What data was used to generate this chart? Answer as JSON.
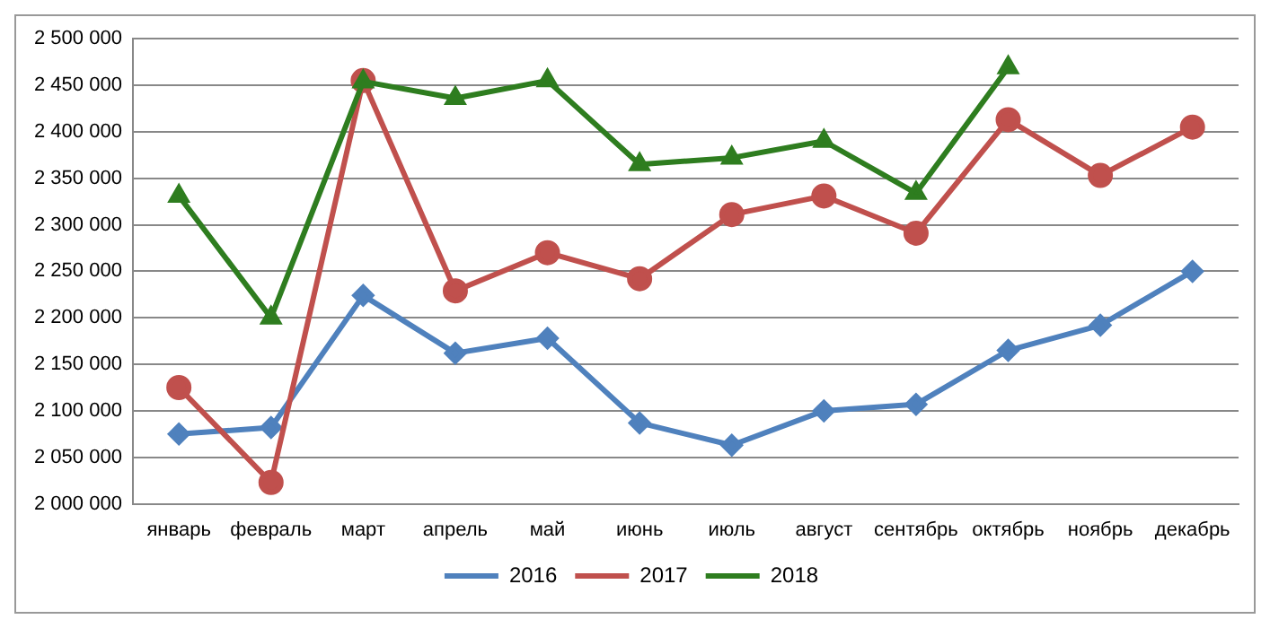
{
  "chart_data": {
    "type": "line",
    "categories": [
      "январь",
      "февраль",
      "март",
      "апрель",
      "май",
      "июнь",
      "июль",
      "август",
      "сентябрь",
      "октябрь",
      "ноябрь",
      "декабрь"
    ],
    "series": [
      {
        "name": "2016",
        "color": "#4f81bd",
        "marker": "diamond",
        "values": [
          2075000,
          2082000,
          2224000,
          2162000,
          2178000,
          2087000,
          2063000,
          2100000,
          2107000,
          2165000,
          2192000,
          2250000
        ]
      },
      {
        "name": "2017",
        "color": "#c0504d",
        "marker": "circle",
        "values": [
          2125000,
          2023000,
          2455000,
          2229000,
          2270000,
          2242000,
          2311000,
          2331000,
          2291000,
          2413000,
          2353000,
          2405000
        ]
      },
      {
        "name": "2018",
        "color": "#2e7d1f",
        "marker": "triangle",
        "values": [
          2331000,
          2200000,
          2454000,
          2436000,
          2455000,
          2365000,
          2372000,
          2390000,
          2334000,
          2469000,
          null,
          null
        ]
      }
    ],
    "ylim": [
      2000000,
      2500000
    ],
    "yticks": [
      {
        "value": 2000000,
        "label": "2 000 000"
      },
      {
        "value": 2050000,
        "label": "2 050 000"
      },
      {
        "value": 2100000,
        "label": "2 100 000"
      },
      {
        "value": 2150000,
        "label": "2 150 000"
      },
      {
        "value": 2200000,
        "label": "2 200 000"
      },
      {
        "value": 2250000,
        "label": "2 250 000"
      },
      {
        "value": 2300000,
        "label": "2 300 000"
      },
      {
        "value": 2350000,
        "label": "2 350 000"
      },
      {
        "value": 2400000,
        "label": "2 400 000"
      },
      {
        "value": 2450000,
        "label": "2 450 000"
      },
      {
        "value": 2500000,
        "label": "2 500 000"
      }
    ],
    "grid": "y",
    "legend": "bottom",
    "line_style": "solid"
  }
}
